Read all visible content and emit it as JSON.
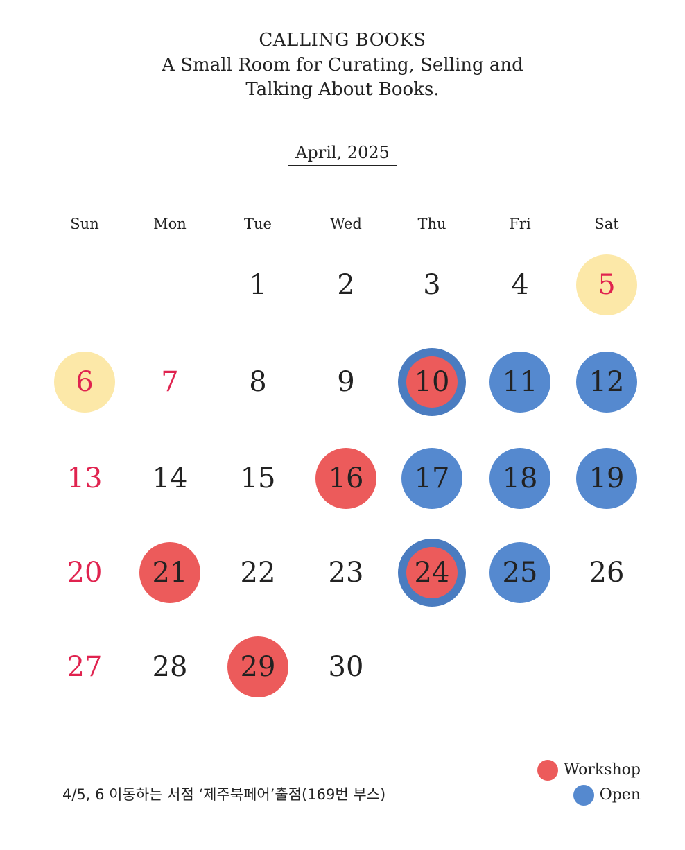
{
  "header": {
    "line1": "CALLING BOOKS",
    "line2": "A Small Room for Curating, Selling and",
    "line3": "Talking About Books."
  },
  "calendar": {
    "month_label": "April, 2025",
    "weekdays": [
      "Sun",
      "Mon",
      "Tue",
      "Wed",
      "Thu",
      "Fri",
      "Sat"
    ],
    "days": [
      {
        "day": "1",
        "weekday": "Tue",
        "mark": "none",
        "holiday": false
      },
      {
        "day": "2",
        "weekday": "Wed",
        "mark": "none",
        "holiday": false
      },
      {
        "day": "3",
        "weekday": "Thu",
        "mark": "none",
        "holiday": false
      },
      {
        "day": "4",
        "weekday": "Fri",
        "mark": "none",
        "holiday": false
      },
      {
        "day": "5",
        "weekday": "Sat",
        "mark": "yellow",
        "holiday": true
      },
      {
        "day": "6",
        "weekday": "Sun",
        "mark": "yellow",
        "holiday": true
      },
      {
        "day": "7",
        "weekday": "Mon",
        "mark": "none",
        "holiday": true
      },
      {
        "day": "8",
        "weekday": "Tue",
        "mark": "none",
        "holiday": false
      },
      {
        "day": "9",
        "weekday": "Wed",
        "mark": "none",
        "holiday": false
      },
      {
        "day": "10",
        "weekday": "Thu",
        "mark": "workshop+open",
        "holiday": false
      },
      {
        "day": "11",
        "weekday": "Fri",
        "mark": "open",
        "holiday": false
      },
      {
        "day": "12",
        "weekday": "Sat",
        "mark": "open",
        "holiday": false
      },
      {
        "day": "13",
        "weekday": "Sun",
        "mark": "none",
        "holiday": true
      },
      {
        "day": "14",
        "weekday": "Mon",
        "mark": "none",
        "holiday": false
      },
      {
        "day": "15",
        "weekday": "Tue",
        "mark": "none",
        "holiday": false
      },
      {
        "day": "16",
        "weekday": "Wed",
        "mark": "workshop",
        "holiday": false
      },
      {
        "day": "17",
        "weekday": "Thu",
        "mark": "open",
        "holiday": false
      },
      {
        "day": "18",
        "weekday": "Fri",
        "mark": "open",
        "holiday": false
      },
      {
        "day": "19",
        "weekday": "Sat",
        "mark": "open",
        "holiday": false
      },
      {
        "day": "20",
        "weekday": "Sun",
        "mark": "none",
        "holiday": true
      },
      {
        "day": "21",
        "weekday": "Mon",
        "mark": "workshop",
        "holiday": false
      },
      {
        "day": "22",
        "weekday": "Tue",
        "mark": "none",
        "holiday": false
      },
      {
        "day": "23",
        "weekday": "Wed",
        "mark": "none",
        "holiday": false
      },
      {
        "day": "24",
        "weekday": "Thu",
        "mark": "workshop+open",
        "holiday": false
      },
      {
        "day": "25",
        "weekday": "Fri",
        "mark": "open",
        "holiday": false
      },
      {
        "day": "26",
        "weekday": "Sat",
        "mark": "none",
        "holiday": false
      },
      {
        "day": "27",
        "weekday": "Sun",
        "mark": "none",
        "holiday": true
      },
      {
        "day": "28",
        "weekday": "Mon",
        "mark": "none",
        "holiday": false
      },
      {
        "day": "29",
        "weekday": "Tue",
        "mark": "workshop",
        "holiday": false
      },
      {
        "day": "30",
        "weekday": "Wed",
        "mark": "none",
        "holiday": false
      }
    ]
  },
  "colors": {
    "workshop": "#ec5b5b",
    "open": "#5589cf",
    "event": "#fce8a8",
    "holiday_text": "#e0234f"
  },
  "legend": {
    "workshop": "Workshop",
    "open": "Open"
  },
  "note": "4/5, 6 이동하는 서점 ‘제주북페어’출점(169번 부스)"
}
